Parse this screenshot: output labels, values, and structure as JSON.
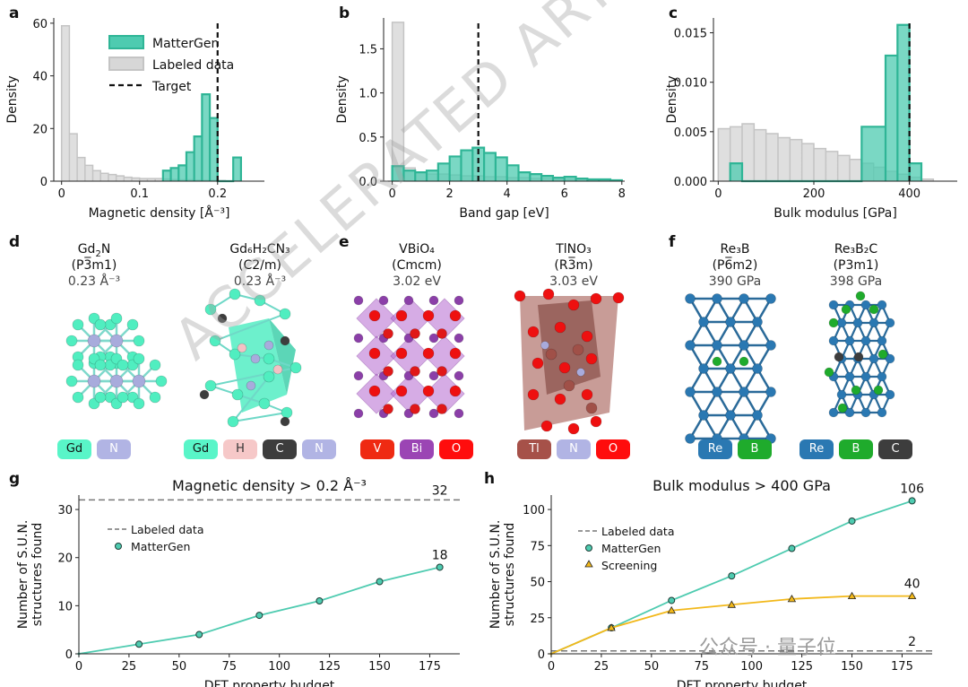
{
  "panels": {
    "a": "a",
    "b": "b",
    "c": "c",
    "d": "d",
    "e": "e",
    "f": "f",
    "g": "g",
    "h": "h"
  },
  "colors": {
    "matter": "#4ecbb0",
    "matterEdge": "#2fb596",
    "labeled": "#d7d7d7",
    "labeledEdge": "#c4c4c4",
    "screening": "#f2b81a",
    "grid": "#777777"
  },
  "chart_data": [
    {
      "id": "a",
      "type": "histogram",
      "xlabel": "Magnetic density [Å⁻³]",
      "ylabel": "Density",
      "xlim": [
        -0.01,
        0.26
      ],
      "ylim": [
        0,
        62
      ],
      "xticks": [
        0,
        0.1,
        0.2
      ],
      "xtick_labels": [
        "0",
        "0.1",
        "0.2"
      ],
      "yticks": [
        0,
        20,
        40,
        60
      ],
      "target": 0.2,
      "legend": [
        "MatterGen",
        "Labeled data",
        "Target"
      ],
      "legend_position": "top-center",
      "labeled": {
        "bin_width": 0.01,
        "start": 0,
        "values": [
          59,
          18,
          9,
          6,
          4,
          3,
          2.5,
          2,
          1.5,
          1.2,
          1,
          1,
          1,
          0.8,
          0.6,
          0.5,
          0.5,
          0.4,
          0.3,
          0.2,
          0.2,
          0.1,
          0.1
        ]
      },
      "matter": {
        "bin_width": 0.01,
        "start": 0.13,
        "values": [
          4,
          5,
          6,
          11,
          17,
          33,
          24,
          0,
          0,
          9
        ]
      }
    },
    {
      "id": "b",
      "type": "histogram",
      "xlabel": "Band gap [eV]",
      "ylabel": "Density",
      "xlim": [
        -0.3,
        8.1
      ],
      "ylim": [
        0,
        1.85
      ],
      "xticks": [
        0,
        2,
        4,
        6,
        8
      ],
      "yticks": [
        0,
        0.5,
        1.0,
        1.5
      ],
      "ytick_labels": [
        "0.0",
        "0.5",
        "1.0",
        "1.5"
      ],
      "target": 3,
      "labeled": {
        "bin_width": 0.4,
        "start": 0,
        "values": [
          1.8,
          0.15,
          0.1,
          0.08,
          0.08,
          0.07,
          0.06,
          0.06,
          0.05,
          0.05,
          0.04,
          0.04,
          0.03,
          0.03,
          0.02,
          0.02,
          0.02,
          0.01,
          0.01,
          0.01
        ]
      },
      "matter": {
        "bin_width": 0.4,
        "start": 0,
        "values": [
          0.17,
          0.12,
          0.1,
          0.12,
          0.2,
          0.28,
          0.35,
          0.38,
          0.32,
          0.27,
          0.18,
          0.1,
          0.08,
          0.06,
          0.04,
          0.05,
          0.03,
          0.02,
          0.02,
          0.01
        ]
      }
    },
    {
      "id": "c",
      "type": "histogram",
      "xlabel": "Bulk modulus [GPa]",
      "ylabel": "Density",
      "xlim": [
        -10,
        500
      ],
      "ylim": [
        0,
        0.0165
      ],
      "xticks": [
        0,
        200,
        400
      ],
      "yticks": [
        0,
        0.005,
        0.01,
        0.015
      ],
      "ytick_labels": [
        "0.000",
        "0.005",
        "0.010",
        "0.015"
      ],
      "target": 400,
      "labeled": {
        "bin_width": 25,
        "start": 0,
        "values": [
          0.0053,
          0.0055,
          0.0058,
          0.0052,
          0.0048,
          0.0044,
          0.0042,
          0.0038,
          0.0033,
          0.003,
          0.0026,
          0.0022,
          0.0018,
          0.0014,
          0.001,
          0.0007,
          0.0004,
          0.0002
        ]
      },
      "matter": {
        "bins": [
          [
            25,
            50,
            0.0018
          ],
          [
            300,
            350,
            0.0055
          ],
          [
            350,
            375,
            0.0127
          ],
          [
            375,
            400,
            0.0158
          ],
          [
            400,
            425,
            0.0018
          ]
        ]
      }
    },
    {
      "id": "g",
      "type": "line",
      "title": "Magnetic density  > 0.2 Å⁻³",
      "xlabel": "DFT property budget",
      "ylabel": "Number of S.U.N.\nstructures found",
      "xlim": [
        0,
        190
      ],
      "ylim": [
        0,
        33
      ],
      "xticks": [
        0,
        25,
        50,
        75,
        100,
        125,
        150,
        175
      ],
      "yticks": [
        0,
        10,
        20,
        30
      ],
      "labeled_line": 32,
      "labeled_label": "32",
      "series": [
        {
          "name": "MatterGen",
          "x": [
            0,
            30,
            60,
            90,
            120,
            150,
            180
          ],
          "y": [
            0,
            2,
            4,
            8,
            11,
            15,
            18
          ],
          "end_label": "18"
        }
      ],
      "legend": [
        "Labeled data",
        "MatterGen"
      ]
    },
    {
      "id": "h",
      "type": "line",
      "title": "Bulk modulus > 400 GPa",
      "xlabel": "DFT property budget",
      "ylabel": "Number of S.U.N.\nstructures found",
      "xlim": [
        0,
        190
      ],
      "ylim": [
        0,
        110
      ],
      "xticks": [
        0,
        25,
        50,
        75,
        100,
        125,
        150,
        175
      ],
      "yticks": [
        0,
        25,
        50,
        75,
        100
      ],
      "labeled_line": 2,
      "labeled_label": "2",
      "series": [
        {
          "name": "MatterGen",
          "x": [
            0,
            30,
            60,
            90,
            120,
            150,
            180
          ],
          "y": [
            0,
            18,
            37,
            54,
            73,
            92,
            106
          ],
          "end_label": "106"
        },
        {
          "name": "Screening",
          "x": [
            0,
            30,
            60,
            90,
            120,
            150,
            180
          ],
          "y": [
            0,
            18,
            30,
            34,
            38,
            40,
            40
          ],
          "end_label": "40"
        }
      ],
      "legend": [
        "Labeled data",
        "MatterGen",
        "Screening"
      ]
    }
  ],
  "structures": {
    "d": [
      {
        "name": "Gd",
        "formula_sub": "2",
        "formula_tail": "N",
        "sg": "(P3̅m1)",
        "value": "0.23 Å⁻³",
        "chips": [
          {
            "t": "Gd",
            "c": "#59f5c8",
            "f": "#111"
          },
          {
            "t": "N",
            "c": "#b1b4e4",
            "f": "#fff"
          }
        ]
      },
      {
        "name": "Gd₆H₂CN₃",
        "sg": "(C2/m)",
        "value": "0.23 Å⁻³",
        "chips": [
          {
            "t": "Gd",
            "c": "#59f5c8",
            "f": "#111"
          },
          {
            "t": "H",
            "c": "#f6c8c8",
            "f": "#333"
          },
          {
            "t": "C",
            "c": "#3d3d3d",
            "f": "#fff"
          },
          {
            "t": "N",
            "c": "#b1b4e4",
            "f": "#fff"
          }
        ]
      }
    ],
    "e": [
      {
        "name": "VBiO₄",
        "sg": "(Cmcm)",
        "value": "3.02 eV",
        "chips": [
          {
            "t": "V",
            "c": "#ef2a12",
            "f": "#fff"
          },
          {
            "t": "Bi",
            "c": "#9b45b4",
            "f": "#fff"
          },
          {
            "t": "O",
            "c": "#ff0d0d",
            "f": "#fff"
          }
        ]
      },
      {
        "name": "TlNO₃",
        "sg": "(R3̅m)",
        "value": "3.03 eV",
        "chips": [
          {
            "t": "Tl",
            "c": "#a65149",
            "f": "#fff"
          },
          {
            "t": "N",
            "c": "#b1b4e4",
            "f": "#fff"
          },
          {
            "t": "O",
            "c": "#ff0d0d",
            "f": "#fff"
          }
        ]
      }
    ],
    "f": [
      {
        "name": "Re₃B",
        "sg": "(P6̅m2)",
        "value": "390 GPa",
        "chips": [
          {
            "t": "Re",
            "c": "#2a78b2",
            "f": "#fff"
          },
          {
            "t": "B",
            "c": "#1fab2c",
            "f": "#fff"
          }
        ]
      },
      {
        "name": "Re₃B₂C",
        "sg": "(P3m1)",
        "value": "398 GPa",
        "chips": [
          {
            "t": "Re",
            "c": "#2a78b2",
            "f": "#fff"
          },
          {
            "t": "B",
            "c": "#1fab2c",
            "f": "#fff"
          },
          {
            "t": "C",
            "c": "#3d3d3d",
            "f": "#fff"
          }
        ]
      }
    ]
  },
  "watermark": "ACCELERATED ARTICLE PREVIEW",
  "source_mark": "公众号 · 量子位"
}
